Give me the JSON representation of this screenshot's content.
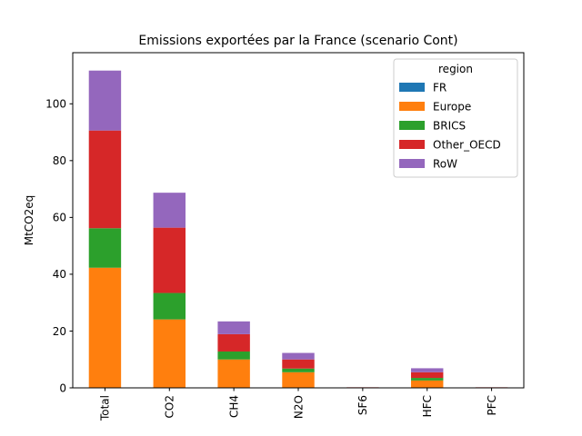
{
  "chart_data": {
    "type": "bar",
    "stacked": true,
    "title": "Emissions exportées par la France (scenario Cont)",
    "xlabel": "",
    "ylabel": "MtCO2eq",
    "categories": [
      "Total",
      "CO2",
      "CH4",
      "N2O",
      "SF6",
      "HFC",
      "PFC"
    ],
    "ylim": [
      0,
      118
    ],
    "yticks": [
      0,
      20,
      40,
      60,
      80,
      100
    ],
    "grid": false,
    "legend": {
      "title": "region",
      "placement": "top-right"
    },
    "series": [
      {
        "name": "FR",
        "color": "#1f77b4",
        "values": [
          0,
          0,
          0,
          0,
          0,
          0,
          0
        ]
      },
      {
        "name": "Europe",
        "color": "#ff7f0e",
        "values": [
          42.3,
          24.1,
          10.0,
          5.5,
          0.1,
          2.6,
          0.1
        ]
      },
      {
        "name": "BRICS",
        "color": "#2ca02c",
        "values": [
          13.9,
          9.3,
          2.8,
          1.3,
          0.0,
          0.9,
          0.0
        ]
      },
      {
        "name": "Other_OECD",
        "color": "#d62728",
        "values": [
          34.4,
          23.0,
          6.1,
          3.2,
          0.1,
          2.0,
          0.1
        ]
      },
      {
        "name": "RoW",
        "color": "#9467bd",
        "values": [
          21.1,
          12.3,
          4.5,
          2.3,
          0.0,
          1.4,
          0.0
        ]
      }
    ]
  }
}
